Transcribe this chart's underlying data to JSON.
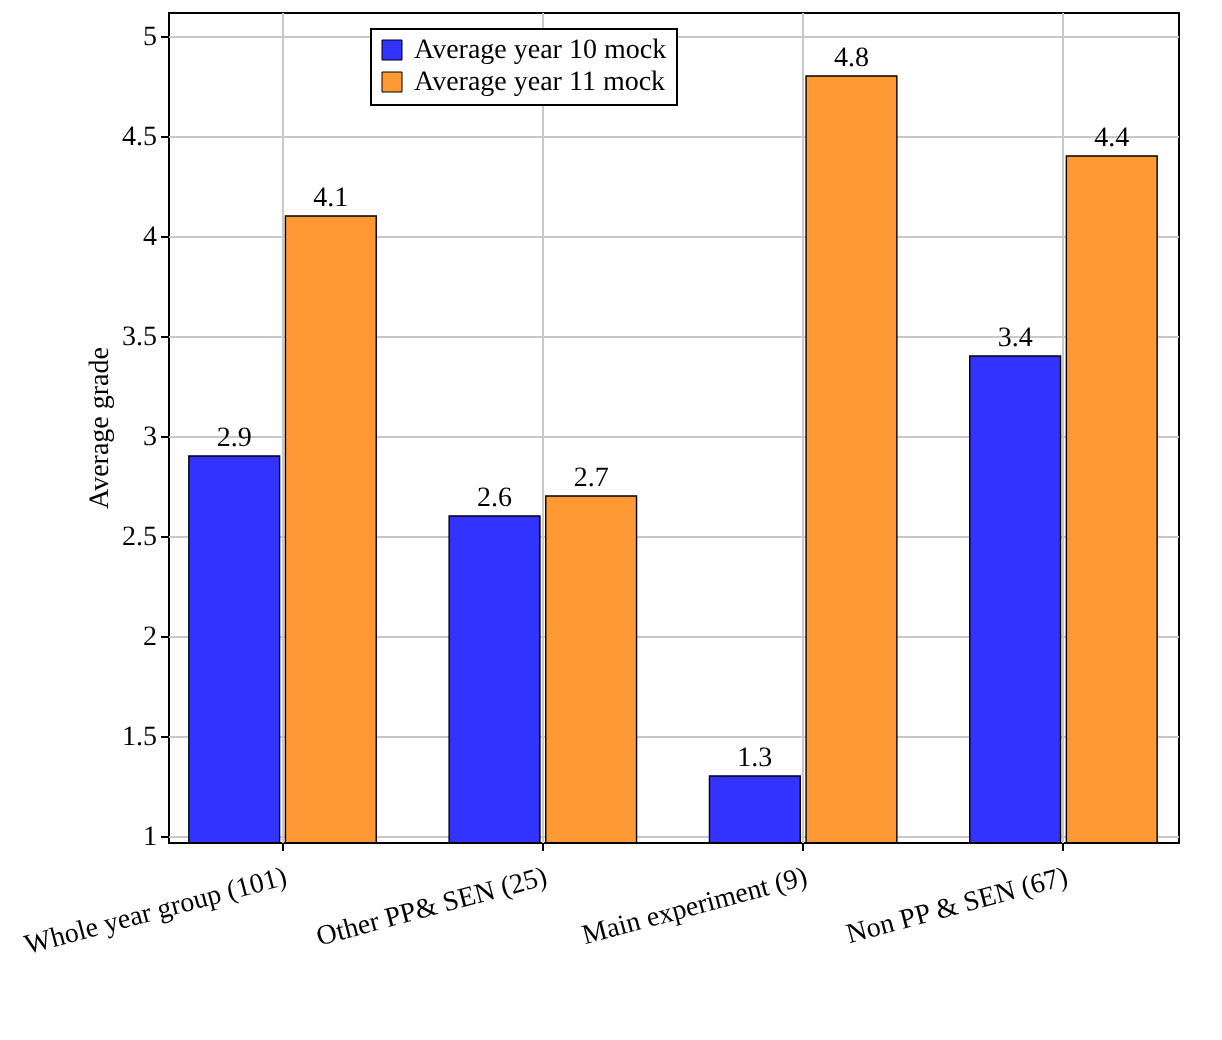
{
  "chart_data": {
    "type": "bar",
    "ylabel": "Average grade",
    "categories": [
      "Whole year group (101)",
      "Other PP& SEN (25)",
      "Main experiment (9)",
      "Non PP & SEN (67)"
    ],
    "series": [
      {
        "name": "Average year 10 mock",
        "color": "#3333ff",
        "values": [
          2.9,
          2.6,
          1.3,
          3.4
        ]
      },
      {
        "name": "Average year 11 mock",
        "color": "#ff9933",
        "values": [
          4.1,
          2.7,
          4.8,
          4.4
        ]
      }
    ],
    "ylim": [
      0.97,
      5.12
    ],
    "yticks": [
      1,
      1.5,
      2,
      2.5,
      3,
      3.5,
      4,
      4.5,
      5
    ],
    "grid": true,
    "legend": "top",
    "data_labels": true
  }
}
